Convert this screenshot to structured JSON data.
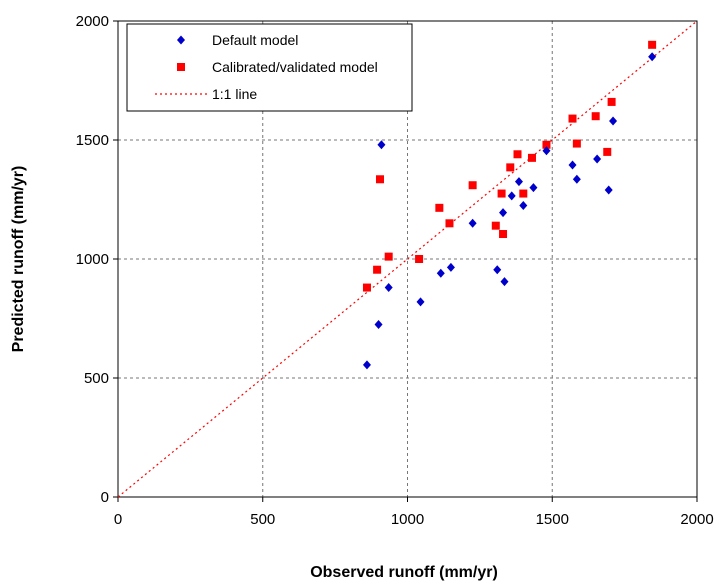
{
  "chart_data": {
    "type": "scatter",
    "xlabel": "Observed runoff (mm/yr)",
    "ylabel": "Predicted runoff (mm/yr)",
    "xlim": [
      0,
      2000
    ],
    "ylim": [
      0,
      2000
    ],
    "x_ticks": [
      0,
      500,
      1000,
      1500,
      2000
    ],
    "y_ticks": [
      0,
      500,
      1000,
      1500,
      2000
    ],
    "grid": true,
    "legend_position": "top-left",
    "series": [
      {
        "name": "Default model",
        "marker": "diamond",
        "color": "#0000CC",
        "points": [
          [
            860,
            555
          ],
          [
            900,
            725
          ],
          [
            910,
            1480
          ],
          [
            935,
            880
          ],
          [
            1045,
            820
          ],
          [
            1115,
            940
          ],
          [
            1150,
            965
          ],
          [
            1225,
            1150
          ],
          [
            1310,
            955
          ],
          [
            1330,
            1195
          ],
          [
            1335,
            905
          ],
          [
            1360,
            1265
          ],
          [
            1385,
            1325
          ],
          [
            1400,
            1225
          ],
          [
            1435,
            1300
          ],
          [
            1480,
            1455
          ],
          [
            1570,
            1395
          ],
          [
            1585,
            1335
          ],
          [
            1655,
            1420
          ],
          [
            1695,
            1290
          ],
          [
            1710,
            1580
          ],
          [
            1845,
            1850
          ]
        ]
      },
      {
        "name": "Calibrated/validated model",
        "marker": "square",
        "color": "#FF0000",
        "points": [
          [
            860,
            880
          ],
          [
            895,
            955
          ],
          [
            905,
            1335
          ],
          [
            935,
            1010
          ],
          [
            1040,
            1000
          ],
          [
            1110,
            1215
          ],
          [
            1145,
            1150
          ],
          [
            1225,
            1310
          ],
          [
            1305,
            1140
          ],
          [
            1325,
            1275
          ],
          [
            1330,
            1105
          ],
          [
            1355,
            1385
          ],
          [
            1380,
            1440
          ],
          [
            1400,
            1275
          ],
          [
            1430,
            1425
          ],
          [
            1480,
            1480
          ],
          [
            1570,
            1590
          ],
          [
            1585,
            1485
          ],
          [
            1650,
            1600
          ],
          [
            1690,
            1450
          ],
          [
            1705,
            1660
          ],
          [
            1845,
            1900
          ]
        ]
      },
      {
        "name": "1:1 line",
        "marker": "line",
        "style": "dotted",
        "color": "#FF0000",
        "points": [
          [
            0,
            0
          ],
          [
            2000,
            2000
          ]
        ]
      }
    ]
  }
}
